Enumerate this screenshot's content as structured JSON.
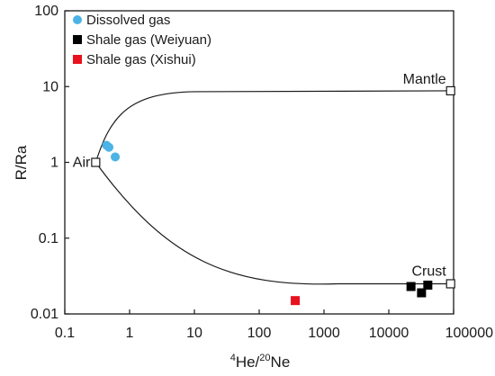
{
  "chart_data": {
    "type": "scatter",
    "x_scale": "log",
    "y_scale": "log",
    "xlim": [
      0.1,
      100000
    ],
    "ylim": [
      0.01,
      100
    ],
    "x_ticks": [
      0.1,
      1,
      10,
      100,
      1000,
      10000,
      100000
    ],
    "y_ticks": [
      0.01,
      0.1,
      1,
      10,
      100
    ],
    "x_tick_labels": [
      "0.1",
      "1",
      "10",
      "100",
      "1000",
      "10000",
      "100000"
    ],
    "y_tick_labels": [
      "0.01",
      "0.1",
      "1",
      "10",
      "100"
    ],
    "xlabel": {
      "sup1": "4",
      "base1": "He/",
      "sup2": "20",
      "base2": "Ne"
    },
    "ylabel": "R/Ra",
    "grid": false,
    "legend_position": "top-left",
    "series": [
      {
        "name": "Dissolved gas",
        "marker": "circle",
        "color": "#4bb3e6",
        "points": [
          [
            0.44,
            1.68
          ],
          [
            0.48,
            1.58
          ],
          [
            0.6,
            1.18
          ]
        ]
      },
      {
        "name": "Shale gas (Weiyuan)",
        "marker": "square",
        "color": "#000000",
        "points": [
          [
            22000,
            0.023
          ],
          [
            32000,
            0.019
          ],
          [
            40000,
            0.024
          ]
        ]
      },
      {
        "name": "Shale gas (Xishui)",
        "marker": "square",
        "color": "#e8111d",
        "points": [
          [
            360,
            0.015
          ]
        ]
      }
    ],
    "end_members": [
      {
        "label": "Air",
        "x": 0.3,
        "y": 1
      },
      {
        "label": "Mantle",
        "x": 90000,
        "y": 8.8
      },
      {
        "label": "Crust",
        "x": 90000,
        "y": 0.025
      }
    ],
    "mixing_curves": [
      {
        "from": "Air",
        "to": "Mantle"
      },
      {
        "from": "Air",
        "to": "Crust"
      }
    ]
  }
}
